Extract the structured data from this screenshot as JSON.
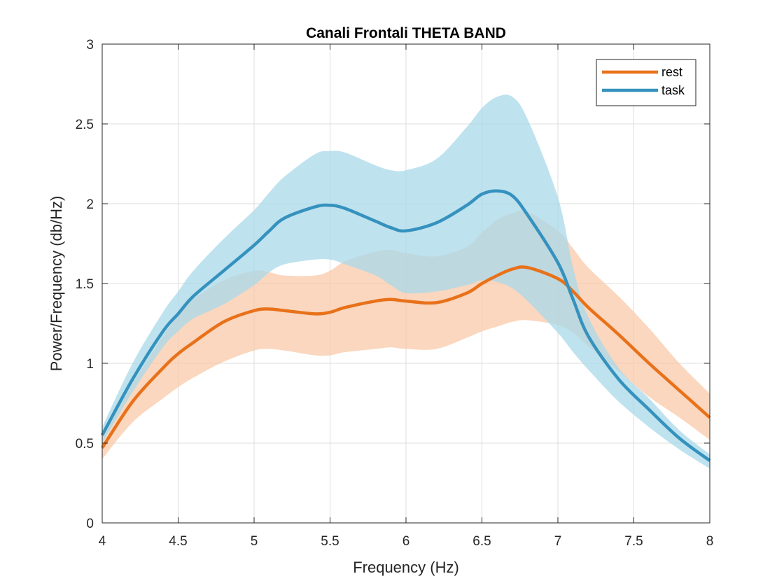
{
  "chart_data": {
    "type": "line",
    "title": "Canali Frontali THETA BAND",
    "xlabel": "Frequency (Hz)",
    "ylabel": "Power/Frequency (db/Hz)",
    "xlim": [
      4,
      8
    ],
    "ylim": [
      0,
      3
    ],
    "xticks": [
      4,
      4.5,
      5,
      5.5,
      6,
      6.5,
      7,
      7.5,
      8
    ],
    "xtick_labels": [
      "4",
      "4.5",
      "5",
      "5.5",
      "6",
      "6.5",
      "7",
      "7.5",
      "8"
    ],
    "yticks": [
      0,
      0.5,
      1,
      1.5,
      2,
      2.5,
      3
    ],
    "ytick_labels": [
      "0",
      "0.5",
      "1",
      "1.5",
      "2",
      "2.5",
      "3"
    ],
    "grid": true,
    "legend_position": "top-right",
    "x": [
      4.0,
      4.2,
      4.4,
      4.5,
      4.6,
      4.8,
      5.0,
      5.1,
      5.2,
      5.4,
      5.5,
      5.6,
      5.8,
      5.9,
      6.0,
      6.2,
      6.4,
      6.5,
      6.6,
      6.7,
      6.8,
      7.0,
      7.1,
      7.2,
      7.4,
      7.6,
      7.8,
      8.0
    ],
    "series": [
      {
        "name": "rest",
        "color": "#E8711A",
        "shade_color": "#F8C9A8",
        "values": [
          0.47,
          0.76,
          0.97,
          1.06,
          1.13,
          1.26,
          1.33,
          1.34,
          1.33,
          1.31,
          1.32,
          1.35,
          1.39,
          1.4,
          1.39,
          1.38,
          1.44,
          1.5,
          1.55,
          1.59,
          1.6,
          1.53,
          1.45,
          1.35,
          1.18,
          1.0,
          0.83,
          0.66
        ],
        "upper": [
          0.55,
          0.87,
          1.17,
          1.3,
          1.4,
          1.52,
          1.58,
          1.57,
          1.55,
          1.55,
          1.58,
          1.64,
          1.7,
          1.71,
          1.69,
          1.67,
          1.73,
          1.82,
          1.9,
          1.94,
          1.95,
          1.83,
          1.72,
          1.6,
          1.42,
          1.22,
          1.0,
          0.81
        ],
        "lower": [
          0.4,
          0.63,
          0.78,
          0.85,
          0.91,
          1.01,
          1.08,
          1.09,
          1.08,
          1.05,
          1.05,
          1.07,
          1.09,
          1.1,
          1.09,
          1.09,
          1.16,
          1.2,
          1.23,
          1.26,
          1.27,
          1.24,
          1.19,
          1.11,
          0.95,
          0.79,
          0.66,
          0.52
        ]
      },
      {
        "name": "task",
        "color": "#3592BE",
        "shade_color": "#A9D8E9",
        "values": [
          0.55,
          0.9,
          1.2,
          1.31,
          1.42,
          1.58,
          1.74,
          1.83,
          1.91,
          1.98,
          1.99,
          1.97,
          1.89,
          1.85,
          1.83,
          1.88,
          1.99,
          2.06,
          2.08,
          2.05,
          1.93,
          1.63,
          1.4,
          1.17,
          0.9,
          0.71,
          0.53,
          0.39
        ],
        "upper": [
          0.6,
          1.0,
          1.32,
          1.45,
          1.58,
          1.78,
          1.96,
          2.07,
          2.17,
          2.31,
          2.33,
          2.32,
          2.24,
          2.21,
          2.21,
          2.28,
          2.48,
          2.6,
          2.67,
          2.67,
          2.53,
          2.04,
          1.6,
          1.29,
          0.97,
          0.78,
          0.58,
          0.43
        ],
        "lower": [
          0.5,
          0.82,
          1.1,
          1.2,
          1.28,
          1.37,
          1.49,
          1.57,
          1.62,
          1.65,
          1.65,
          1.62,
          1.55,
          1.49,
          1.44,
          1.45,
          1.49,
          1.52,
          1.51,
          1.47,
          1.39,
          1.19,
          1.07,
          0.96,
          0.76,
          0.6,
          0.46,
          0.34
        ]
      }
    ]
  }
}
